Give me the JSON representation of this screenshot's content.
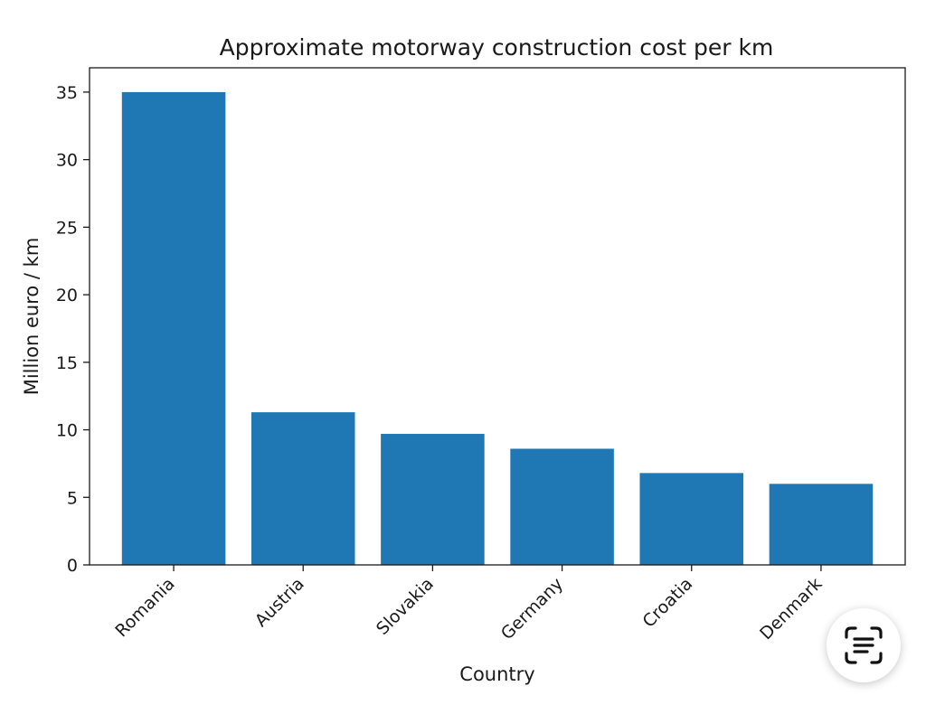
{
  "chart_data": {
    "type": "bar",
    "title": "Approximate motorway construction cost per km",
    "xlabel": "Country",
    "ylabel": "Million euro / km",
    "categories": [
      "Romania",
      "Austria",
      "Slovakia",
      "Germany",
      "Croatia",
      "Denmark"
    ],
    "values": [
      35,
      11.3,
      9.7,
      8.6,
      6.8,
      6.0
    ],
    "ylim": [
      0,
      36.8
    ],
    "yticks": [
      0,
      5,
      10,
      15,
      20,
      25,
      30,
      35
    ],
    "bar_color": "#1f77b4",
    "grid": false,
    "legend": false
  },
  "overlay": {
    "scan_button_icon": "text-scan-icon"
  }
}
